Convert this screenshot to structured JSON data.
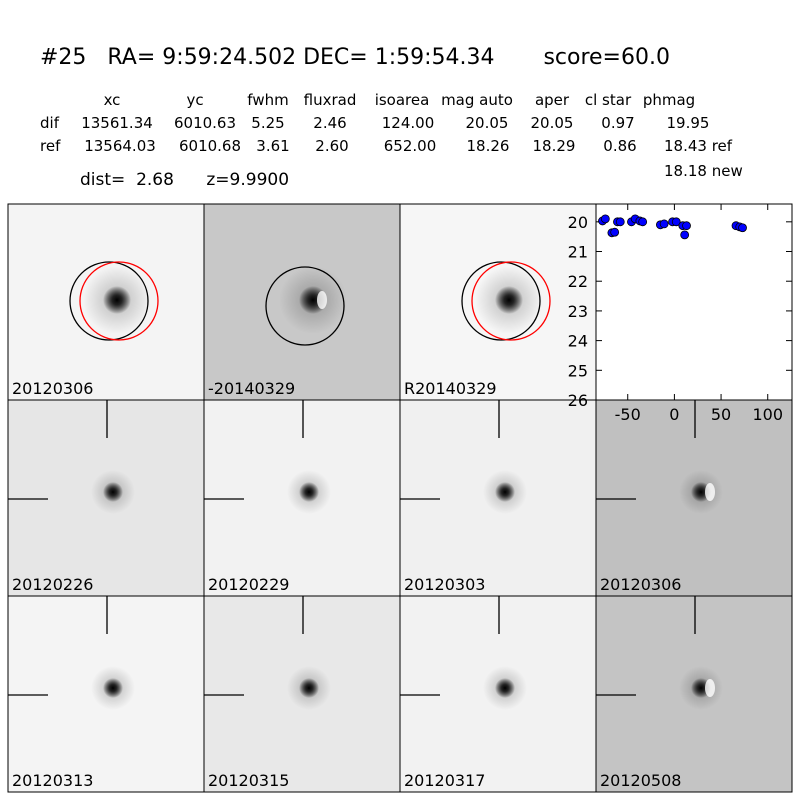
{
  "header": {
    "title": "#25   RA= 9:59:24.502 DEC= 1:59:54.34       score=60.0"
  },
  "table": {
    "columns": [
      "xc",
      "yc",
      "fwhm",
      "fluxrad",
      "isoarea",
      "mag auto",
      "aper",
      "cl star",
      "phmag"
    ],
    "rows": [
      [
        "dif",
        "13561.34",
        "6010.63",
        "5.25",
        "2.46",
        "124.00",
        "20.05",
        "20.05",
        "0.97",
        "19.95"
      ],
      [
        "ref",
        "13564.03",
        "6010.68",
        "3.61",
        "2.60",
        "652.00",
        "18.26",
        "18.29",
        "0.86",
        "18.43 ref"
      ]
    ],
    "extra": "18.18 new"
  },
  "dist_line": "dist=  2.68      z=9.9900",
  "panels": {
    "labels": [
      "20120306",
      "-20140329",
      "R20140329",
      "20120226",
      "20120229",
      "20120303",
      "20120306",
      "20120313",
      "20120315",
      "20120317",
      "20120508"
    ]
  },
  "chart_data": {
    "type": "scatter",
    "x": [
      -77,
      -74,
      -67,
      -64,
      -61,
      -58,
      -46,
      -42,
      -37,
      -34,
      -15,
      -11,
      -2,
      2,
      9,
      11,
      13,
      66,
      70,
      73
    ],
    "values": [
      19.97,
      19.9,
      20.37,
      20.35,
      20.0,
      20.0,
      20.0,
      19.9,
      19.97,
      20.0,
      20.1,
      20.07,
      20.0,
      20.0,
      20.13,
      20.44,
      20.13,
      20.13,
      20.17,
      20.2
    ],
    "color": "#0000ff",
    "xlim": [
      -84,
      126
    ],
    "ylim": [
      26,
      19.4
    ],
    "xticks": [
      -50,
      0,
      50,
      100
    ],
    "yticks": [
      20,
      21,
      22,
      23,
      24,
      25,
      26
    ]
  }
}
